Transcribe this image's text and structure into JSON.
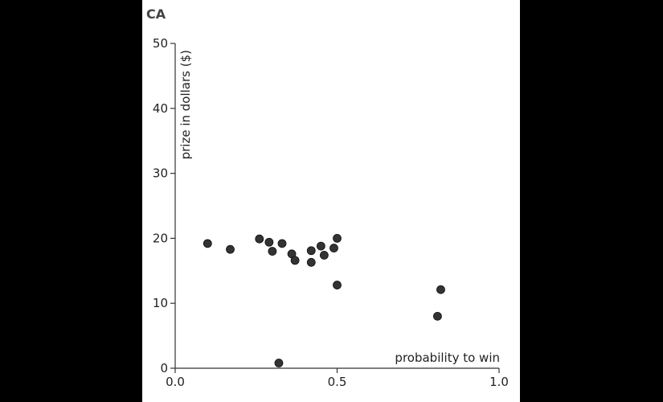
{
  "chart_data": {
    "type": "scatter",
    "title": "CA",
    "xlabel": "probability to win",
    "ylabel": "prize in dollars ($)",
    "xlim": [
      0.0,
      1.0
    ],
    "ylim": [
      0,
      50
    ],
    "x_ticks": [
      0.0,
      0.5,
      1.0
    ],
    "x_tick_labels": [
      "0.0",
      "0.5",
      "1.0"
    ],
    "y_ticks": [
      0,
      10,
      20,
      30,
      40,
      50
    ],
    "y_tick_labels": [
      "0",
      "10",
      "20",
      "30",
      "40",
      "50"
    ],
    "grid": false,
    "legend": "none",
    "marker_color": "#333333",
    "points": [
      {
        "x": 0.1,
        "y": 19.2
      },
      {
        "x": 0.17,
        "y": 18.3
      },
      {
        "x": 0.26,
        "y": 19.9
      },
      {
        "x": 0.29,
        "y": 19.4
      },
      {
        "x": 0.3,
        "y": 18.0
      },
      {
        "x": 0.32,
        "y": 0.8
      },
      {
        "x": 0.33,
        "y": 19.2
      },
      {
        "x": 0.36,
        "y": 17.6
      },
      {
        "x": 0.37,
        "y": 16.6
      },
      {
        "x": 0.42,
        "y": 18.1
      },
      {
        "x": 0.42,
        "y": 16.3
      },
      {
        "x": 0.45,
        "y": 18.8
      },
      {
        "x": 0.46,
        "y": 17.4
      },
      {
        "x": 0.49,
        "y": 18.5
      },
      {
        "x": 0.5,
        "y": 20.0
      },
      {
        "x": 0.5,
        "y": 12.8
      },
      {
        "x": 0.81,
        "y": 8.0
      },
      {
        "x": 0.82,
        "y": 12.1
      }
    ]
  }
}
